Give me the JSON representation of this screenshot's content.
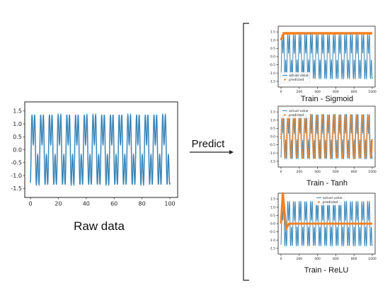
{
  "labels": {
    "raw_data": "Raw data",
    "predict": "Predict"
  },
  "colors": {
    "actual": "#3a86b8",
    "predicted": "#f28021",
    "axis": "#222222"
  },
  "chart_data": [
    {
      "type": "line",
      "title": "",
      "caption": "Raw data",
      "xlim": [
        0,
        100
      ],
      "ylim": [
        -1.85,
        1.85
      ],
      "xticks": [
        "0",
        "20",
        "40",
        "60",
        "80",
        "100"
      ],
      "yticks": [
        "1.5",
        "1.0",
        "0.5",
        "0.0",
        "-0.5",
        "-1.0",
        "-1.5"
      ],
      "series": [
        {
          "values_formula": "sin(2*pi*x/6.25) + 0.8*sin(3*2*pi*x/6.25)"
        }
      ]
    },
    {
      "type": "line",
      "caption": "Train - Sigmoid",
      "xlim": [
        0,
        1000
      ],
      "ylim": [
        -1.85,
        1.85
      ],
      "xticks": [
        "0",
        "200",
        "400",
        "600",
        "800",
        "1000"
      ],
      "yticks": [
        "1.5",
        "1.0",
        "0.5",
        "0.0",
        "-0.5",
        "-1.0",
        "-1.5"
      ],
      "legend": {
        "placement": "lower-left",
        "entries": [
          "actual value",
          "predicted"
        ]
      },
      "series": [
        {
          "name": "actual value"
        },
        {
          "name": "predicted",
          "description": "flat near 1.4 after a short rise"
        }
      ]
    },
    {
      "type": "line",
      "caption": "Train - Tanh",
      "xlim": [
        0,
        1000
      ],
      "ylim": [
        -1.85,
        1.85
      ],
      "xticks": [
        "0",
        "200",
        "400",
        "600",
        "800",
        "1000"
      ],
      "yticks": [
        "1.5",
        "1.0",
        "0.5",
        "0.0",
        "-0.5",
        "-1.0",
        "-1.5"
      ],
      "legend": {
        "placement": "top-left",
        "entries": [
          "actual value",
          "predicted"
        ]
      },
      "series": [
        {
          "name": "actual value"
        },
        {
          "name": "predicted",
          "description": "oscillating between about -1.3 and 1.3"
        }
      ]
    },
    {
      "type": "line",
      "caption": "Train - ReLU",
      "xlim": [
        0,
        1000
      ],
      "ylim": [
        -1.85,
        1.85
      ],
      "xticks": [
        "0",
        "200",
        "400",
        "600",
        "800",
        "1000"
      ],
      "yticks": [
        "1.5",
        "1.0",
        "0.5",
        "0.0",
        "-0.5",
        "-1.0",
        "-1.5"
      ],
      "legend": {
        "placement": "top-center",
        "entries": [
          "actual value",
          "predicted"
        ]
      },
      "series": [
        {
          "name": "actual value"
        },
        {
          "name": "predicted",
          "description": "spike to about 1.9 then flat at 0.0"
        }
      ]
    }
  ]
}
